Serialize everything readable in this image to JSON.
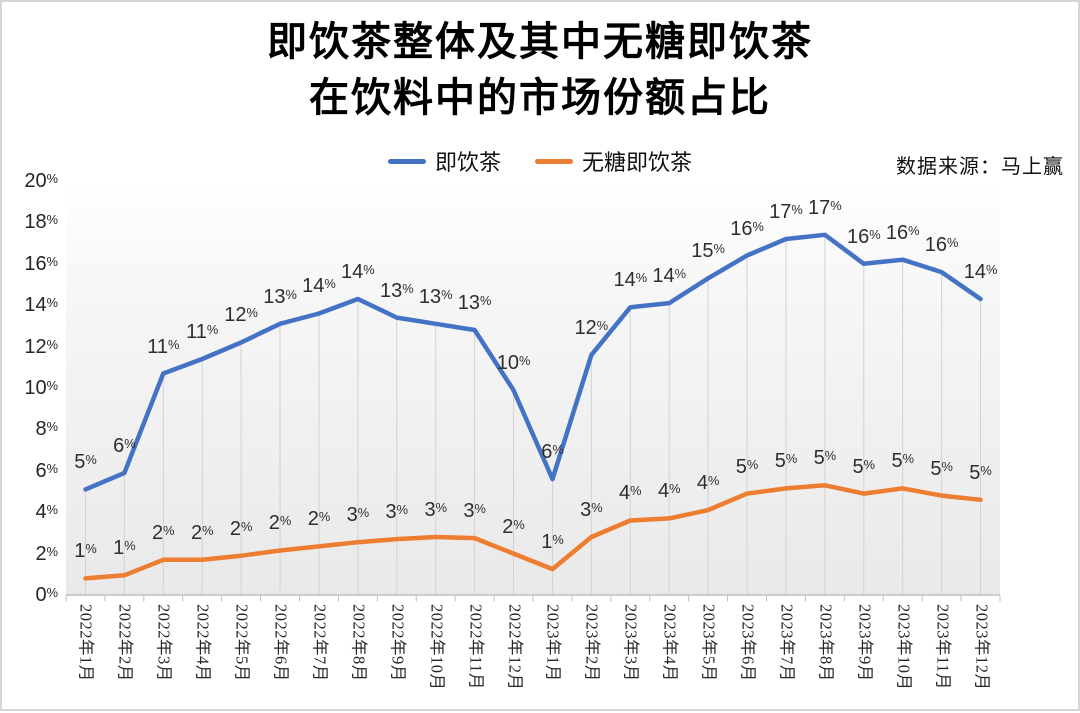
{
  "title": {
    "line1": "即饮茶整体及其中无糖即饮茶",
    "line2": "在饮料中的市场份额占比"
  },
  "source": "数据来源：马上赢",
  "chart_data": {
    "type": "line",
    "title": "即饮茶整体及其中无糖即饮茶在饮料中的市场份额占比",
    "legend_position": "top",
    "grid": "vertical-drop-lines",
    "plot_background": "white-to-gray vertical gradient",
    "x_tick_rotation": 90,
    "ylim": [
      0,
      20
    ],
    "y_ticks": [
      "0%",
      "2%",
      "4%",
      "6%",
      "8%",
      "10%",
      "12%",
      "14%",
      "16%",
      "18%",
      "20%"
    ],
    "categories": [
      "2022年1月",
      "2022年2月",
      "2022年3月",
      "2022年4月",
      "2022年5月",
      "2022年6月",
      "2022年7月",
      "2022年8月",
      "2022年9月",
      "2022年10月",
      "2022年11月",
      "2022年12月",
      "2023年1月",
      "2023年2月",
      "2023年3月",
      "2023年4月",
      "2023年5月",
      "2023年6月",
      "2023年7月",
      "2023年8月",
      "2023年9月",
      "2023年10月",
      "2023年11月",
      "2023年12月"
    ],
    "series": [
      {
        "id": "ready-to-drink-tea",
        "name": "即饮茶",
        "color": "#4472C4",
        "values": [
          5.1,
          5.9,
          10.7,
          11.4,
          12.2,
          13.1,
          13.6,
          14.3,
          13.4,
          13.1,
          12.8,
          9.9,
          5.6,
          11.6,
          13.9,
          14.1,
          15.3,
          16.4,
          17.2,
          17.4,
          16.0,
          16.2,
          15.6,
          14.3
        ],
        "labels": [
          "5%",
          "6%",
          "11%",
          "11%",
          "12%",
          "13%",
          "14%",
          "14%",
          "13%",
          "13%",
          "13%",
          "10%",
          "6%",
          "12%",
          "14%",
          "14%",
          "15%",
          "16%",
          "17%",
          "17%",
          "16%",
          "16%",
          "16%",
          "14%"
        ]
      },
      {
        "id": "sugar-free-ready-to-drink-tea",
        "name": "无糖即饮茶",
        "color": "#ED7D31",
        "values": [
          0.8,
          0.95,
          1.7,
          1.7,
          1.9,
          2.15,
          2.35,
          2.55,
          2.7,
          2.8,
          2.75,
          2.0,
          1.25,
          2.8,
          3.6,
          3.7,
          4.1,
          4.9,
          5.15,
          5.3,
          4.9,
          5.15,
          4.8,
          4.6
        ],
        "labels": [
          "1%",
          "1%",
          "2%",
          "2%",
          "2%",
          "2%",
          "2%",
          "3%",
          "3%",
          "3%",
          "3%",
          "2%",
          "1%",
          "3%",
          "4%",
          "4%",
          "4%",
          "5%",
          "5%",
          "5%",
          "5%",
          "5%",
          "5%",
          "5%"
        ]
      }
    ]
  },
  "colors": {
    "axis": "#bfbfbf",
    "drop_line": "#d2d2d2",
    "plot_bg_top": "#ffffff",
    "plot_bg_mid": "#f6f6f6",
    "plot_bg_bottom": "#e9e9e9"
  }
}
